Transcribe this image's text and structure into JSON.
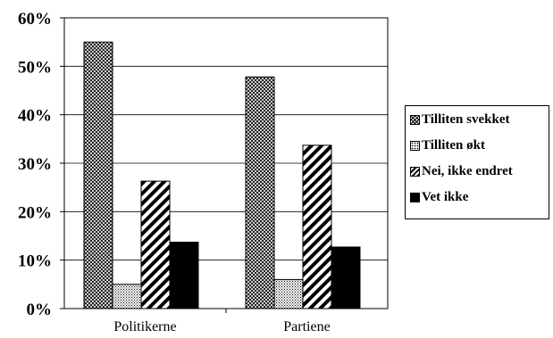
{
  "chart_data": {
    "type": "bar",
    "categories": [
      "Politikerne",
      "Partiene"
    ],
    "series": [
      {
        "name": "Tilliten svekket",
        "values": [
          55,
          47.8
        ],
        "pattern": "crosshatch"
      },
      {
        "name": "Tilliten økt",
        "values": [
          5,
          6
        ],
        "pattern": "dots"
      },
      {
        "name": "Nei, ikke endret",
        "values": [
          26.3,
          33.7
        ],
        "pattern": "diagonal"
      },
      {
        "name": "Vet ikke",
        "values": [
          13.7,
          12.7
        ],
        "pattern": "solid"
      }
    ],
    "yticks": [
      "0%",
      "10%",
      "20%",
      "30%",
      "40%",
      "50%",
      "60%"
    ],
    "ylim": [
      0,
      60
    ],
    "grid": true,
    "legend_position": "right",
    "title": "",
    "xlabel": "",
    "ylabel": ""
  }
}
